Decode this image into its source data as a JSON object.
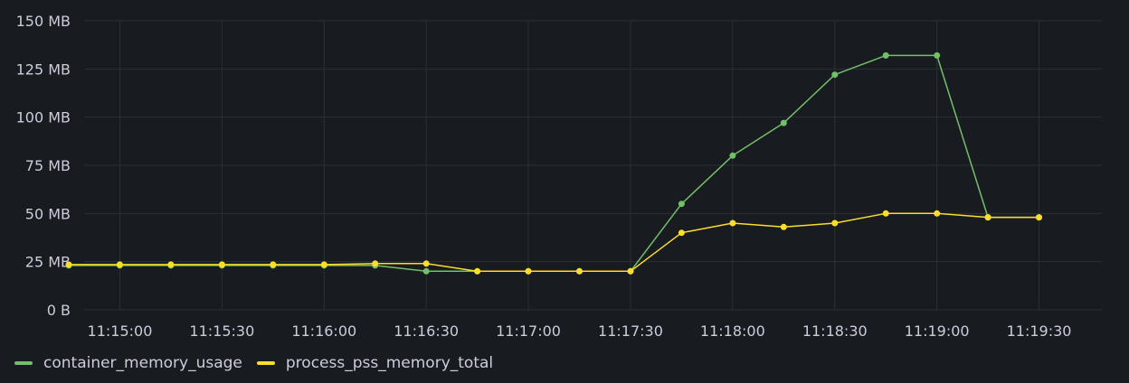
{
  "chart_data": {
    "type": "line",
    "x": [
      "11:14:45",
      "11:15:00",
      "11:15:15",
      "11:15:30",
      "11:15:45",
      "11:16:00",
      "11:16:15",
      "11:16:30",
      "11:16:45",
      "11:17:00",
      "11:17:15",
      "11:17:30",
      "11:17:45",
      "11:18:00",
      "11:18:15",
      "11:18:30",
      "11:18:45",
      "11:19:00",
      "11:19:15",
      "11:19:30"
    ],
    "x_tick_labels": [
      "11:15:00",
      "11:15:30",
      "11:16:00",
      "11:16:30",
      "11:17:00",
      "11:17:30",
      "11:18:00",
      "11:18:30",
      "11:19:00",
      "11:19:30"
    ],
    "y_tick_labels": [
      "0 B",
      "25 MB",
      "50 MB",
      "75 MB",
      "100 MB",
      "125 MB",
      "150 MB"
    ],
    "ylim": [
      0,
      150
    ],
    "y_unit": "MB",
    "grid": true,
    "legend_position": "bottom-left",
    "series": [
      {
        "name": "container_memory_usage",
        "color": "#73bf69",
        "values": [
          23,
          23,
          23,
          23,
          23,
          23,
          23,
          20,
          20,
          20,
          20,
          20,
          55,
          80,
          97,
          122,
          132,
          132,
          48,
          48
        ]
      },
      {
        "name": "process_pss_memory_total",
        "color": "#fade2a",
        "values": [
          23.5,
          23.5,
          23.5,
          23.5,
          23.5,
          23.5,
          24,
          24,
          20,
          20,
          20,
          20,
          40,
          45,
          43,
          45,
          50,
          50,
          48,
          48
        ]
      }
    ]
  }
}
